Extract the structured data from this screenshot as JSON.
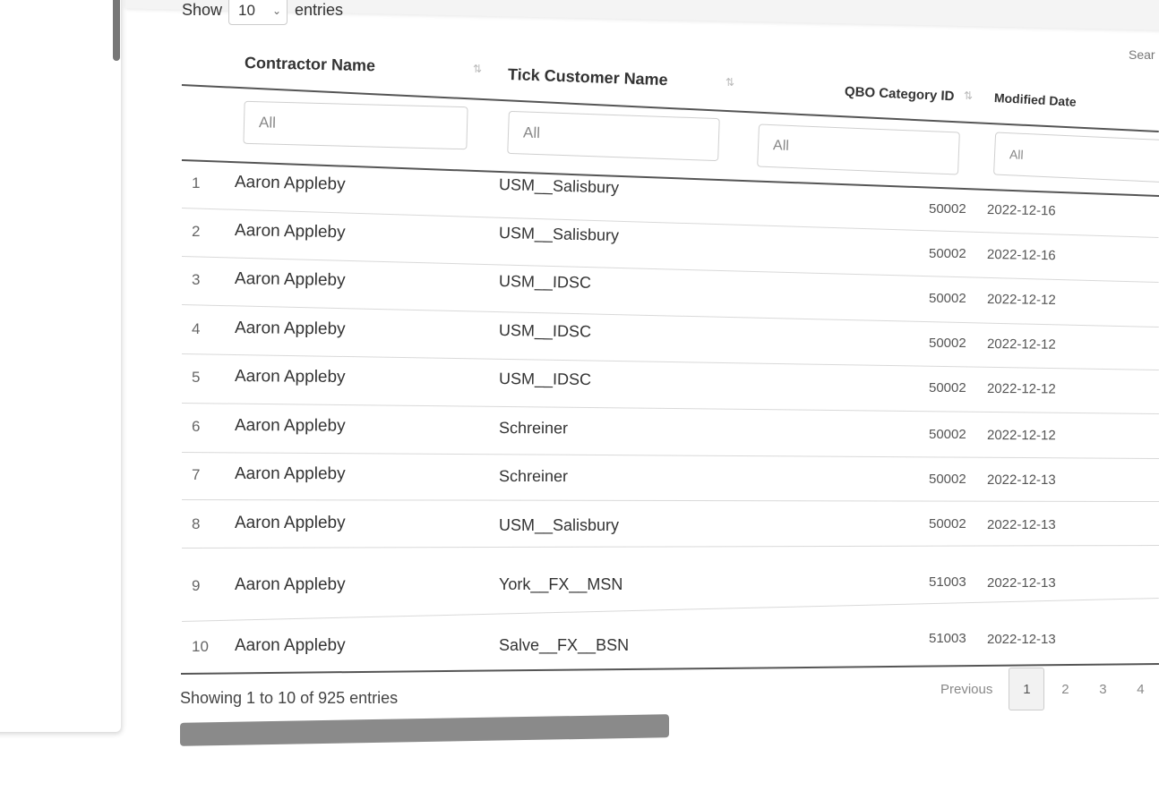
{
  "length_control": {
    "show_label": "Show",
    "selected": "10",
    "entries_label": "entries"
  },
  "search": {
    "label": "Sear"
  },
  "table": {
    "headers": {
      "contractor": "Contractor Name",
      "customer": "Tick Customer Name",
      "category": "QBO Category ID",
      "modified": "Modified Date"
    },
    "filter_placeholder": "All",
    "rows": [
      {
        "index": "1",
        "contractor": "Aaron Appleby",
        "customer": "USM__Salisbury",
        "category": "50002",
        "modified": "2022-12-16"
      },
      {
        "index": "2",
        "contractor": "Aaron Appleby",
        "customer": "USM__Salisbury",
        "category": "50002",
        "modified": "2022-12-16"
      },
      {
        "index": "3",
        "contractor": "Aaron Appleby",
        "customer": "USM__IDSC",
        "category": "50002",
        "modified": "2022-12-12"
      },
      {
        "index": "4",
        "contractor": "Aaron Appleby",
        "customer": "USM__IDSC",
        "category": "50002",
        "modified": "2022-12-12"
      },
      {
        "index": "5",
        "contractor": "Aaron Appleby",
        "customer": "USM__IDSC",
        "category": "50002",
        "modified": "2022-12-12"
      },
      {
        "index": "6",
        "contractor": "Aaron Appleby",
        "customer": "Schreiner",
        "category": "50002",
        "modified": "2022-12-12"
      },
      {
        "index": "7",
        "contractor": "Aaron Appleby",
        "customer": "Schreiner",
        "category": "50002",
        "modified": "2022-12-13"
      },
      {
        "index": "8",
        "contractor": "Aaron Appleby",
        "customer": "USM__Salisbury",
        "category": "50002",
        "modified": "2022-12-13"
      },
      {
        "index": "9",
        "contractor": "Aaron Appleby",
        "customer": "York__FX__MSN",
        "category": "51003",
        "modified": "2022-12-13"
      },
      {
        "index": "10",
        "contractor": "Aaron Appleby",
        "customer": "Salve__FX__BSN",
        "category": "51003",
        "modified": "2022-12-13"
      }
    ]
  },
  "footer": {
    "info": "Showing 1 to 10 of 925 entries"
  },
  "pagination": {
    "previous": "Previous",
    "pages": [
      "1",
      "2",
      "3",
      "4"
    ],
    "current": "1"
  },
  "icons": {
    "sort": "sort-icon",
    "chevron": "chevron-down-icon"
  }
}
